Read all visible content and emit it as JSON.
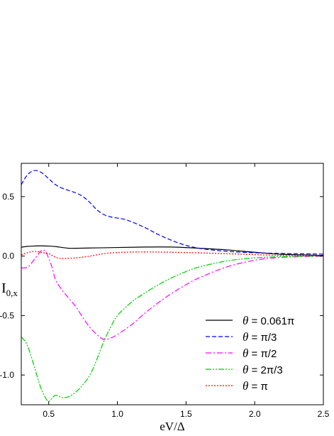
{
  "chart_data": {
    "type": "line",
    "xlabel": "eV/Δ",
    "ylabel": "I",
    "ylabel_sub": "0,x",
    "xlim": [
      0.3,
      2.5
    ],
    "ylim": [
      -1.25,
      0.78
    ],
    "xticks": [
      0.5,
      1.0,
      1.5,
      2.0,
      2.5
    ],
    "xtick_labels": [
      "0.5",
      "1.0",
      "1.5",
      "2.0",
      "2.5"
    ],
    "yticks": [
      -1.0,
      -0.5,
      0.0,
      0.5
    ],
    "ytick_labels": [
      "-1.0",
      "-0.5",
      "0.0",
      "0.5"
    ],
    "grid": false,
    "legend_position": "bottom-right",
    "series": [
      {
        "name": "θ = 0.061π",
        "legend_prefix": "θ",
        "legend_suffix": "= 0.061π",
        "color": "#000000",
        "style": "solid",
        "x": [
          0.3,
          0.35,
          0.4,
          0.45,
          0.5,
          0.55,
          0.6,
          0.65,
          0.7,
          0.8,
          0.9,
          1.0,
          1.2,
          1.4,
          1.6,
          1.8,
          2.0,
          2.2,
          2.5
        ],
        "y": [
          0.075,
          0.082,
          0.085,
          0.086,
          0.084,
          0.08,
          0.072,
          0.066,
          0.066,
          0.068,
          0.07,
          0.072,
          0.076,
          0.076,
          0.066,
          0.052,
          0.032,
          0.015,
          0.006
        ]
      },
      {
        "name": "θ = π/3",
        "legend_prefix": "θ",
        "legend_suffix": "= π/3",
        "color": "#0000ff",
        "style": "dash",
        "x": [
          0.3,
          0.33,
          0.36,
          0.4,
          0.45,
          0.5,
          0.55,
          0.6,
          0.65,
          0.7,
          0.75,
          0.8,
          0.85,
          0.9,
          0.95,
          1.0,
          1.05,
          1.1,
          1.2,
          1.3,
          1.4,
          1.5,
          1.6,
          1.7,
          1.8,
          1.9,
          2.0,
          2.2,
          2.5
        ],
        "y": [
          0.6,
          0.66,
          0.7,
          0.72,
          0.7,
          0.65,
          0.6,
          0.57,
          0.55,
          0.53,
          0.5,
          0.45,
          0.39,
          0.35,
          0.33,
          0.32,
          0.31,
          0.29,
          0.24,
          0.18,
          0.13,
          0.09,
          0.065,
          0.05,
          0.04,
          0.033,
          0.028,
          0.022,
          0.017
        ]
      },
      {
        "name": "θ = π/2",
        "legend_prefix": "θ",
        "legend_suffix": "= π/2",
        "color": "#ff00ff",
        "style": "dashdot",
        "x": [
          0.3,
          0.35,
          0.4,
          0.45,
          0.48,
          0.52,
          0.55,
          0.6,
          0.65,
          0.7,
          0.75,
          0.8,
          0.85,
          0.9,
          0.95,
          1.0,
          1.1,
          1.2,
          1.3,
          1.4,
          1.5,
          1.6,
          1.8,
          2.0,
          2.2,
          2.5
        ],
        "y": [
          -0.1,
          -0.09,
          -0.02,
          0.05,
          0.03,
          -0.08,
          -0.2,
          -0.29,
          -0.36,
          -0.43,
          -0.52,
          -0.6,
          -0.66,
          -0.7,
          -0.69,
          -0.66,
          -0.58,
          -0.48,
          -0.39,
          -0.31,
          -0.24,
          -0.18,
          -0.09,
          -0.035,
          -0.01,
          -0.002
        ]
      },
      {
        "name": "θ = 2π/3",
        "legend_prefix": "θ",
        "legend_suffix": "= 2π/3",
        "color": "#00cc00",
        "style": "dashdotdot",
        "x": [
          0.3,
          0.33,
          0.36,
          0.4,
          0.44,
          0.48,
          0.5,
          0.52,
          0.55,
          0.6,
          0.65,
          0.7,
          0.75,
          0.8,
          0.85,
          0.9,
          0.95,
          1.0,
          1.1,
          1.2,
          1.3,
          1.4,
          1.5,
          1.6,
          1.8,
          2.0,
          2.2,
          2.5
        ],
        "y": [
          -0.68,
          -0.72,
          -0.8,
          -0.95,
          -1.1,
          -1.2,
          -1.22,
          -1.2,
          -1.17,
          -1.19,
          -1.18,
          -1.14,
          -1.08,
          -1.0,
          -0.87,
          -0.72,
          -0.6,
          -0.5,
          -0.39,
          -0.31,
          -0.24,
          -0.18,
          -0.13,
          -0.09,
          -0.04,
          -0.015,
          -0.005,
          0.0
        ]
      },
      {
        "name": "θ = π",
        "legend_prefix": "θ",
        "legend_suffix": "= π",
        "color": "#ff0000",
        "style": "dot",
        "x": [
          0.3,
          0.35,
          0.4,
          0.45,
          0.5,
          0.55,
          0.6,
          0.7,
          0.8,
          0.9,
          1.0,
          1.2,
          1.5,
          1.8,
          2.0,
          2.2,
          2.5
        ],
        "y": [
          0.01,
          0.03,
          0.04,
          0.03,
          0.02,
          -0.01,
          -0.02,
          -0.015,
          0.0,
          0.02,
          0.03,
          0.035,
          0.03,
          0.02,
          0.012,
          0.006,
          0.003
        ]
      }
    ]
  }
}
